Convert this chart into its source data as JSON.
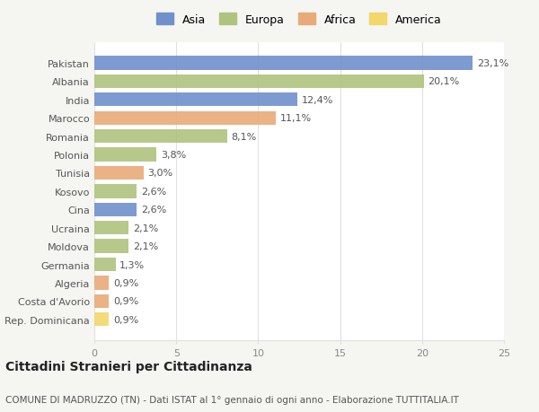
{
  "countries": [
    "Pakistan",
    "Albania",
    "India",
    "Marocco",
    "Romania",
    "Polonia",
    "Tunisia",
    "Kosovo",
    "Cina",
    "Ucraina",
    "Moldova",
    "Germania",
    "Algeria",
    "Costa d'Avorio",
    "Rep. Dominicana"
  ],
  "values": [
    23.1,
    20.1,
    12.4,
    11.1,
    8.1,
    3.8,
    3.0,
    2.6,
    2.6,
    2.1,
    2.1,
    1.3,
    0.9,
    0.9,
    0.9
  ],
  "labels": [
    "23,1%",
    "20,1%",
    "12,4%",
    "11,1%",
    "8,1%",
    "3,8%",
    "3,0%",
    "2,6%",
    "2,6%",
    "2,1%",
    "2,1%",
    "1,3%",
    "0,9%",
    "0,9%",
    "0,9%"
  ],
  "continents": [
    "Asia",
    "Europa",
    "Asia",
    "Africa",
    "Europa",
    "Europa",
    "Africa",
    "Europa",
    "Asia",
    "Europa",
    "Europa",
    "Europa",
    "Africa",
    "Africa",
    "America"
  ],
  "continent_colors": {
    "Asia": "#7090cc",
    "Europa": "#aec47e",
    "Africa": "#e8aa78",
    "America": "#f2d86a"
  },
  "legend_order": [
    "Asia",
    "Europa",
    "Africa",
    "America"
  ],
  "title": "Cittadini Stranieri per Cittadinanza",
  "subtitle": "COMUNE DI MADRUZZO (TN) - Dati ISTAT al 1° gennaio di ogni anno - Elaborazione TUTTITALIA.IT",
  "xlim": [
    0,
    25
  ],
  "xticks": [
    0,
    5,
    10,
    15,
    20,
    25
  ],
  "background_color": "#f5f5f2",
  "bar_background": "#ffffff",
  "grid_color": "#e0e0e0",
  "title_fontsize": 10,
  "subtitle_fontsize": 7.5,
  "label_fontsize": 8,
  "tick_fontsize": 8,
  "legend_fontsize": 9
}
